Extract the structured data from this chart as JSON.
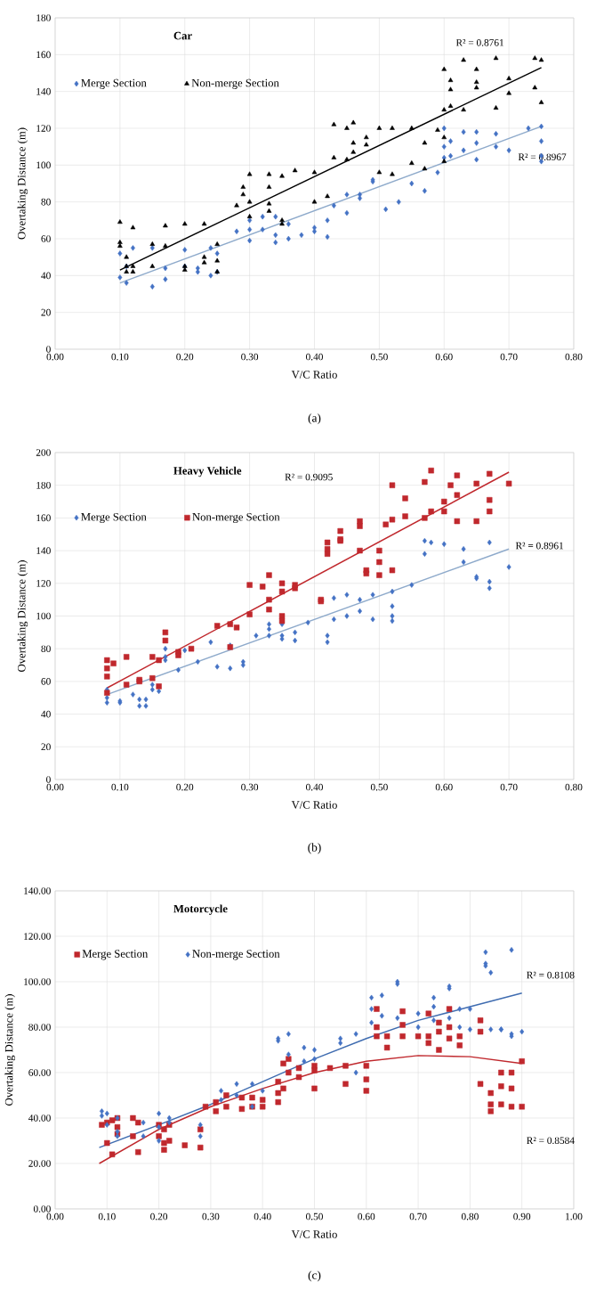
{
  "chart_data": [
    {
      "type": "scatter",
      "title": "Car",
      "xlabel": "V/C Ratio",
      "ylabel": "Overtaking Distance (m)",
      "xlim": [
        0,
        0.8
      ],
      "ylim": [
        0,
        180
      ],
      "xticks": [
        {
          "value": 0,
          "label": "0.00"
        },
        {
          "value": 0.1,
          "label": "0.10"
        },
        {
          "value": 0.2,
          "label": "0.20"
        },
        {
          "value": 0.3,
          "label": "0.30"
        },
        {
          "value": 0.4,
          "label": "0.40"
        },
        {
          "value": 0.5,
          "label": "0.50"
        },
        {
          "value": 0.6,
          "label": "0.60"
        },
        {
          "value": 0.7,
          "label": "0.70"
        },
        {
          "value": 0.8,
          "label": "0.80"
        }
      ],
      "yticks": [
        0,
        20,
        40,
        60,
        80,
        100,
        120,
        140,
        160,
        180
      ],
      "grid": true,
      "legend": "top left",
      "annotations": [
        "R² = 0.8761",
        "R² = 0.8967",
        "(a)"
      ],
      "series": [
        {
          "name": "Merge Section",
          "type": "scatter",
          "marker": "diamond",
          "color": "#4472c4",
          "x": [
            0.1,
            0.1,
            0.11,
            0.11,
            0.12,
            0.15,
            0.15,
            0.17,
            0.17,
            0.2,
            0.2,
            0.22,
            0.22,
            0.24,
            0.24,
            0.25,
            0.25,
            0.28,
            0.3,
            0.3,
            0.3,
            0.32,
            0.32,
            0.34,
            0.34,
            0.34,
            0.36,
            0.36,
            0.38,
            0.4,
            0.4,
            0.42,
            0.42,
            0.43,
            0.45,
            0.45,
            0.47,
            0.47,
            0.49,
            0.49,
            0.51,
            0.53,
            0.55,
            0.57,
            0.59,
            0.6,
            0.6,
            0.6,
            0.61,
            0.61,
            0.63,
            0.63,
            0.65,
            0.65,
            0.65,
            0.68,
            0.68,
            0.7,
            0.73,
            0.75,
            0.75,
            0.75,
            0.75
          ],
          "values": [
            39,
            52,
            36,
            45,
            55,
            34,
            55,
            38,
            44,
            45,
            54,
            44,
            42,
            40,
            55,
            52,
            42,
            64,
            59,
            65,
            70,
            65,
            72,
            58,
            72,
            62,
            60,
            68,
            62,
            64,
            66,
            61,
            70,
            78,
            84,
            74,
            84,
            82,
            91,
            92,
            76,
            80,
            90,
            86,
            96,
            120,
            110,
            104,
            113,
            105,
            108,
            118,
            118,
            112,
            103,
            117,
            110,
            108,
            120,
            121,
            113,
            105,
            102
          ]
        },
        {
          "name": "Non-merge Section",
          "type": "scatter",
          "marker": "triangle",
          "color": "#000000",
          "x": [
            0.1,
            0.1,
            0.1,
            0.11,
            0.11,
            0.11,
            0.12,
            0.12,
            0.12,
            0.15,
            0.15,
            0.17,
            0.17,
            0.2,
            0.2,
            0.2,
            0.23,
            0.23,
            0.23,
            0.25,
            0.25,
            0.25,
            0.28,
            0.29,
            0.29,
            0.3,
            0.3,
            0.3,
            0.33,
            0.33,
            0.33,
            0.33,
            0.35,
            0.35,
            0.35,
            0.37,
            0.4,
            0.4,
            0.42,
            0.43,
            0.43,
            0.45,
            0.45,
            0.46,
            0.46,
            0.46,
            0.48,
            0.48,
            0.5,
            0.5,
            0.52,
            0.52,
            0.55,
            0.55,
            0.57,
            0.57,
            0.59,
            0.6,
            0.6,
            0.6,
            0.6,
            0.61,
            0.61,
            0.61,
            0.63,
            0.63,
            0.65,
            0.65,
            0.65,
            0.68,
            0.68,
            0.7,
            0.7,
            0.74,
            0.74,
            0.75,
            0.75
          ],
          "values": [
            69,
            58,
            56,
            50,
            45,
            42,
            66,
            45,
            42,
            57,
            45,
            67,
            56,
            68,
            45,
            43,
            68,
            50,
            47,
            48,
            42,
            57,
            78,
            84,
            88,
            95,
            80,
            72,
            79,
            95,
            88,
            75,
            94,
            68,
            70,
            97,
            96,
            80,
            83,
            122,
            104,
            120,
            103,
            123,
            112,
            107,
            115,
            111,
            120,
            96,
            120,
            95,
            120,
            101,
            98,
            112,
            119,
            152,
            130,
            115,
            102,
            146,
            141,
            132,
            157,
            130,
            152,
            145,
            142,
            158,
            131,
            147,
            139,
            158,
            142,
            157,
            134
          ]
        },
        {
          "type": "line",
          "marker": "none",
          "color": "#000000",
          "x": [
            0.1,
            0.75
          ],
          "values": [
            43,
            153
          ]
        },
        {
          "type": "line",
          "marker": "none",
          "color": "#8eaacb",
          "x": [
            0.1,
            0.75
          ],
          "values": [
            36,
            121
          ]
        }
      ]
    },
    {
      "type": "scatter",
      "title": "Heavy Vehicle",
      "xlabel": "V/C Ratio",
      "ylabel": "Overtaking Distance (m)",
      "xlim": [
        0,
        0.8
      ],
      "ylim": [
        0,
        200
      ],
      "xticks": [
        {
          "value": 0,
          "label": "0.00"
        },
        {
          "value": 0.1,
          "label": "0.10"
        },
        {
          "value": 0.2,
          "label": "0.20"
        },
        {
          "value": 0.3,
          "label": "0.30"
        },
        {
          "value": 0.4,
          "label": "0.40"
        },
        {
          "value": 0.5,
          "label": "0.50"
        },
        {
          "value": 0.6,
          "label": "0.60"
        },
        {
          "value": 0.7,
          "label": "0.70"
        },
        {
          "value": 0.8,
          "label": "0.80"
        }
      ],
      "yticks": [
        0,
        20,
        40,
        60,
        80,
        100,
        120,
        140,
        160,
        180,
        200
      ],
      "grid": true,
      "legend": "top left",
      "annotations": [
        "R² = 0.9095",
        "R² = 0.8961",
        "(b)"
      ],
      "series": [
        {
          "name": "Merge Section",
          "type": "scatter",
          "marker": "diamond",
          "color": "#4472c4",
          "x": [
            0.08,
            0.08,
            0.08,
            0.1,
            0.1,
            0.12,
            0.13,
            0.13,
            0.14,
            0.14,
            0.15,
            0.15,
            0.16,
            0.17,
            0.17,
            0.17,
            0.19,
            0.2,
            0.22,
            0.24,
            0.25,
            0.27,
            0.27,
            0.29,
            0.29,
            0.31,
            0.33,
            0.33,
            0.33,
            0.35,
            0.35,
            0.35,
            0.37,
            0.37,
            0.39,
            0.42,
            0.42,
            0.43,
            0.43,
            0.45,
            0.45,
            0.47,
            0.47,
            0.49,
            0.49,
            0.52,
            0.52,
            0.52,
            0.52,
            0.55,
            0.57,
            0.57,
            0.58,
            0.6,
            0.63,
            0.63,
            0.65,
            0.65,
            0.67,
            0.67,
            0.67,
            0.7
          ],
          "values": [
            47,
            50,
            55,
            48,
            47,
            52,
            45,
            49,
            49,
            45,
            58,
            55,
            54,
            80,
            75,
            73,
            67,
            79,
            72,
            84,
            69,
            82,
            68,
            72,
            70,
            88,
            95,
            88,
            92,
            86,
            88,
            95,
            90,
            85,
            96,
            88,
            84,
            111,
            98,
            113,
            100,
            110,
            103,
            98,
            113,
            97,
            100,
            106,
            115,
            119,
            146,
            138,
            145,
            144,
            141,
            133,
            123,
            124,
            117,
            121,
            145,
            130
          ]
        },
        {
          "name": "Non-merge Section",
          "type": "scatter",
          "marker": "square",
          "color": "#c0282d",
          "x": [
            0.08,
            0.08,
            0.08,
            0.08,
            0.09,
            0.11,
            0.11,
            0.13,
            0.13,
            0.15,
            0.15,
            0.16,
            0.16,
            0.17,
            0.17,
            0.19,
            0.19,
            0.21,
            0.25,
            0.27,
            0.27,
            0.28,
            0.3,
            0.3,
            0.32,
            0.33,
            0.33,
            0.33,
            0.35,
            0.35,
            0.35,
            0.35,
            0.37,
            0.37,
            0.41,
            0.41,
            0.42,
            0.42,
            0.42,
            0.44,
            0.44,
            0.44,
            0.47,
            0.47,
            0.47,
            0.48,
            0.48,
            0.5,
            0.5,
            0.5,
            0.51,
            0.52,
            0.52,
            0.52,
            0.54,
            0.54,
            0.57,
            0.57,
            0.58,
            0.58,
            0.6,
            0.6,
            0.61,
            0.62,
            0.62,
            0.62,
            0.65,
            0.65,
            0.67,
            0.67,
            0.67,
            0.7
          ],
          "values": [
            63,
            53,
            73,
            68,
            71,
            75,
            58,
            61,
            60,
            75,
            62,
            57,
            73,
            85,
            90,
            78,
            76,
            80,
            94,
            95,
            81,
            93,
            101,
            119,
            118,
            110,
            104,
            125,
            115,
            120,
            100,
            97,
            117,
            119,
            110,
            109,
            145,
            141,
            138,
            152,
            147,
            146,
            140,
            158,
            155,
            128,
            126,
            140,
            133,
            125,
            156,
            128,
            180,
            159,
            172,
            161,
            160,
            182,
            164,
            189,
            170,
            164,
            180,
            186,
            158,
            174,
            181,
            158,
            164,
            187,
            171,
            181
          ]
        },
        {
          "type": "line",
          "marker": "none",
          "color": "#c0282d",
          "x": [
            0.08,
            0.7
          ],
          "values": [
            56,
            188
          ]
        },
        {
          "type": "line",
          "marker": "none",
          "color": "#8eaacb",
          "x": [
            0.08,
            0.7
          ],
          "values": [
            52,
            141
          ]
        }
      ]
    },
    {
      "type": "scatter",
      "title": "Motorcycle",
      "xlabel": "V/C Ratio",
      "ylabel": "Overtaking Distance (m)",
      "xlim": [
        0,
        1.0
      ],
      "ylim": [
        0,
        140
      ],
      "xticks": [
        {
          "value": 0,
          "label": "0.00"
        },
        {
          "value": 0.1,
          "label": "0.10"
        },
        {
          "value": 0.2,
          "label": "0.20"
        },
        {
          "value": 0.3,
          "label": "0.30"
        },
        {
          "value": 0.4,
          "label": "0.40"
        },
        {
          "value": 0.5,
          "label": "0.50"
        },
        {
          "value": 0.6,
          "label": "0.60"
        },
        {
          "value": 0.7,
          "label": "0.70"
        },
        {
          "value": 0.8,
          "label": "0.80"
        },
        {
          "value": 0.9,
          "label": "0.90"
        },
        {
          "value": 1.0,
          "label": "1.00"
        }
      ],
      "yticks": [
        {
          "value": 0,
          "label": "0.00"
        },
        {
          "value": 20,
          "label": "20.00"
        },
        {
          "value": 40,
          "label": "40.00"
        },
        {
          "value": 60,
          "label": "60.00"
        },
        {
          "value": 80,
          "label": "80.00"
        },
        {
          "value": 100,
          "label": "100.00"
        },
        {
          "value": 120,
          "label": "120.00"
        },
        {
          "value": 140,
          "label": "140.00"
        }
      ],
      "grid": true,
      "legend": "top left",
      "annotations": [
        "R² = 0.8108",
        "R² = 0.8584",
        "(c)"
      ],
      "series": [
        {
          "name": "Merge Section",
          "type": "scatter",
          "marker": "square",
          "color": "#c0282d",
          "x": [
            0.09,
            0.1,
            0.1,
            0.11,
            0.11,
            0.12,
            0.12,
            0.12,
            0.15,
            0.15,
            0.16,
            0.16,
            0.2,
            0.2,
            0.21,
            0.21,
            0.21,
            0.22,
            0.22,
            0.25,
            0.28,
            0.28,
            0.29,
            0.31,
            0.31,
            0.33,
            0.33,
            0.36,
            0.36,
            0.38,
            0.38,
            0.4,
            0.4,
            0.43,
            0.43,
            0.43,
            0.44,
            0.44,
            0.45,
            0.45,
            0.47,
            0.47,
            0.5,
            0.5,
            0.5,
            0.53,
            0.56,
            0.56,
            0.6,
            0.6,
            0.6,
            0.62,
            0.62,
            0.62,
            0.64,
            0.64,
            0.67,
            0.67,
            0.67,
            0.7,
            0.72,
            0.72,
            0.72,
            0.74,
            0.74,
            0.74,
            0.76,
            0.76,
            0.76,
            0.78,
            0.78,
            0.82,
            0.82,
            0.82,
            0.84,
            0.84,
            0.84,
            0.86,
            0.86,
            0.86,
            0.88,
            0.88,
            0.88,
            0.9,
            0.9
          ],
          "values": [
            37,
            38,
            29,
            39,
            24,
            40,
            33,
            36,
            40,
            32,
            25,
            38,
            37,
            32,
            35,
            29,
            26,
            37,
            30,
            28,
            35,
            27,
            45,
            47,
            43,
            50,
            45,
            49,
            44,
            49,
            45,
            48,
            45,
            56,
            47,
            51,
            64,
            53,
            66,
            60,
            62,
            58,
            61,
            53,
            63,
            62,
            63,
            55,
            63,
            57,
            52,
            88,
            80,
            76,
            76,
            71,
            87,
            81,
            76,
            76,
            86,
            76,
            73,
            82,
            78,
            70,
            88,
            80,
            75,
            76,
            72,
            83,
            78,
            55,
            46,
            51,
            43,
            54,
            60,
            46,
            53,
            60,
            45,
            65,
            45
          ]
        },
        {
          "name": "Non-merge Section",
          "type": "scatter",
          "marker": "diamond",
          "color": "#4472c4",
          "x": [
            0.09,
            0.09,
            0.1,
            0.1,
            0.12,
            0.12,
            0.12,
            0.17,
            0.17,
            0.2,
            0.2,
            0.2,
            0.22,
            0.22,
            0.28,
            0.28,
            0.32,
            0.32,
            0.35,
            0.35,
            0.38,
            0.38,
            0.4,
            0.43,
            0.43,
            0.45,
            0.45,
            0.48,
            0.48,
            0.5,
            0.5,
            0.55,
            0.55,
            0.58,
            0.58,
            0.61,
            0.61,
            0.61,
            0.63,
            0.63,
            0.66,
            0.66,
            0.66,
            0.7,
            0.7,
            0.73,
            0.73,
            0.73,
            0.76,
            0.76,
            0.76,
            0.78,
            0.78,
            0.8,
            0.8,
            0.83,
            0.83,
            0.83,
            0.84,
            0.84,
            0.86,
            0.86,
            0.88,
            0.88,
            0.88,
            0.9
          ],
          "values": [
            43,
            41,
            42,
            37,
            40,
            34,
            32,
            38,
            32,
            42,
            36,
            30,
            40,
            38,
            37,
            32,
            48,
            52,
            55,
            50,
            55,
            45,
            52,
            74,
            75,
            77,
            68,
            71,
            65,
            70,
            66,
            75,
            73,
            77,
            60,
            93,
            88,
            82,
            94,
            85,
            100,
            99,
            84,
            86,
            80,
            93,
            89,
            83,
            98,
            97,
            84,
            88,
            80,
            88,
            79,
            107,
            108,
            113,
            104,
            79,
            79,
            79,
            114,
            76,
            77,
            78
          ]
        },
        {
          "type": "line",
          "marker": "none",
          "color": "#c0282d",
          "x": [
            0.085,
            0.2,
            0.3,
            0.4,
            0.5,
            0.6,
            0.7,
            0.8,
            0.9
          ],
          "values": [
            20,
            35,
            45,
            53,
            60,
            65,
            67.5,
            67,
            64
          ]
        },
        {
          "type": "line",
          "marker": "none",
          "color": "#3f6cb0",
          "x": [
            0.085,
            0.2,
            0.3,
            0.4,
            0.5,
            0.6,
            0.7,
            0.8,
            0.9
          ],
          "values": [
            27,
            37,
            46,
            56,
            66,
            75,
            83,
            89,
            95
          ]
        }
      ]
    }
  ]
}
